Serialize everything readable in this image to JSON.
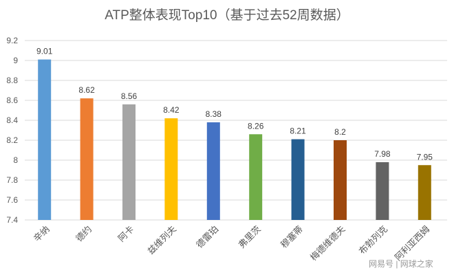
{
  "chart_data": {
    "type": "bar",
    "title": "ATP整体表现Top10（基于过去52周数据）",
    "xlabel": "",
    "ylabel": "",
    "ylim": [
      7.4,
      9.2
    ],
    "yticks": [
      "7.4",
      "7.6",
      "7.8",
      "8",
      "8.2",
      "8.4",
      "8.6",
      "8.8",
      "9",
      "9.2"
    ],
    "grid": true,
    "categories": [
      "辛纳",
      "德约",
      "阿卡",
      "兹维列夫",
      "德雷珀",
      "弗里茨",
      "穆塞蒂",
      "梅德维德夫",
      "布勃列克",
      "阿利亚西姆"
    ],
    "values": [
      9.01,
      8.62,
      8.56,
      8.42,
      8.38,
      8.26,
      8.21,
      8.2,
      7.98,
      7.95
    ],
    "value_labels": [
      "9.01",
      "8.62",
      "8.56",
      "8.42",
      "8.38",
      "8.26",
      "8.21",
      "8.2",
      "7.98",
      "7.95"
    ],
    "colors": [
      "#5B9BD5",
      "#ED7D31",
      "#A5A5A5",
      "#FFC000",
      "#4472C4",
      "#70AD47",
      "#255E91",
      "#9E480E",
      "#636363",
      "#997300"
    ]
  },
  "watermark": "网易号 | 网球之家"
}
